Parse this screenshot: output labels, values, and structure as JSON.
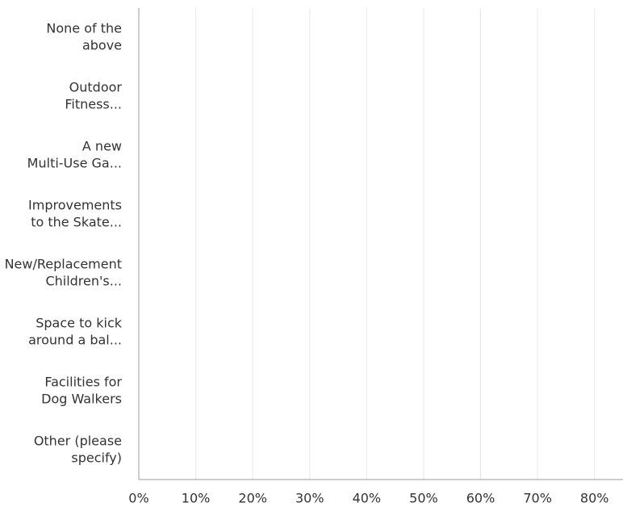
{
  "chart_data": {
    "type": "barh",
    "categories": [
      [
        "None of the",
        "above"
      ],
      [
        "Outdoor",
        "Fitness..."
      ],
      [
        "A new",
        "Multi-Use Ga..."
      ],
      [
        "Improvements",
        "to the Skate..."
      ],
      [
        "New/Replacement",
        "Children's..."
      ],
      [
        "Space to kick",
        "around a bal..."
      ],
      [
        "Facilities for",
        "Dog Walkers"
      ],
      [
        "Other (please",
        "specify)"
      ]
    ],
    "values": [
      0,
      0,
      0,
      0,
      0,
      0,
      0,
      0
    ],
    "xlim": [
      0,
      85
    ],
    "xticks": [
      {
        "value": 0,
        "label": "0%"
      },
      {
        "value": 10,
        "label": "10%"
      },
      {
        "value": 20,
        "label": "20%"
      },
      {
        "value": 30,
        "label": "30%"
      },
      {
        "value": 40,
        "label": "40%"
      },
      {
        "value": 50,
        "label": "50%"
      },
      {
        "value": 60,
        "label": "60%"
      },
      {
        "value": 70,
        "label": "70%"
      },
      {
        "value": 80,
        "label": "80%"
      }
    ],
    "grid": true
  }
}
